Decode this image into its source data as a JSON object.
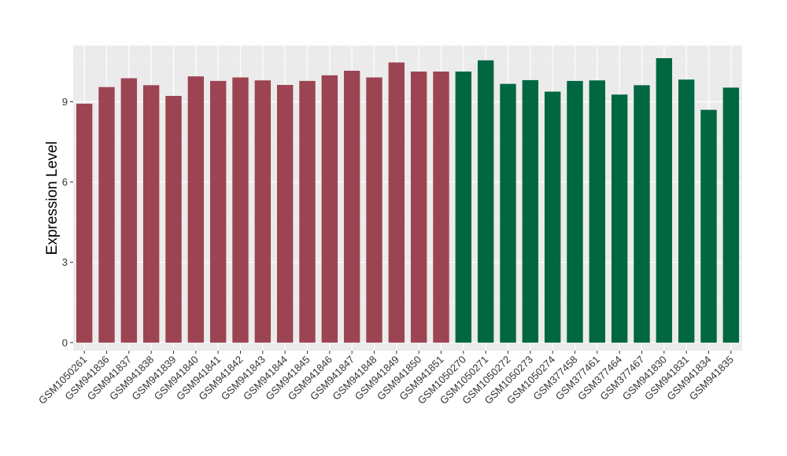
{
  "chart_data": {
    "type": "bar",
    "title": "",
    "xlabel": "",
    "ylabel": "Expression Level",
    "ylim": [
      -0.3,
      11.1
    ],
    "yticks": [
      0,
      3,
      6,
      9
    ],
    "grid": true,
    "legend": "none",
    "background": "#EBEBEB",
    "colors": {
      "group1": "#9C4452",
      "group2": "#006741"
    },
    "categories": [
      "GSM1050261",
      "GSM941836",
      "GSM941837",
      "GSM941838",
      "GSM941839",
      "GSM941840",
      "GSM941841",
      "GSM941842",
      "GSM941843",
      "GSM941844",
      "GSM941845",
      "GSM941846",
      "GSM941847",
      "GSM941848",
      "GSM941849",
      "GSM941850",
      "GSM941851",
      "GSM1050270",
      "GSM1050271",
      "GSM1050272",
      "GSM1050273",
      "GSM1050274",
      "GSM377458",
      "GSM377461",
      "GSM377464",
      "GSM377467",
      "GSM941830",
      "GSM941831",
      "GSM941834",
      "GSM941835"
    ],
    "values": [
      8.93,
      9.55,
      9.88,
      9.62,
      9.22,
      9.95,
      9.78,
      9.91,
      9.8,
      9.63,
      9.78,
      9.99,
      10.16,
      9.91,
      10.47,
      10.13,
      10.13,
      10.13,
      10.55,
      9.67,
      9.81,
      9.38,
      9.78,
      9.8,
      9.27,
      9.62,
      10.63,
      9.83,
      8.7,
      9.53
    ],
    "group": [
      1,
      1,
      1,
      1,
      1,
      1,
      1,
      1,
      1,
      1,
      1,
      1,
      1,
      1,
      1,
      1,
      1,
      2,
      2,
      2,
      2,
      2,
      2,
      2,
      2,
      2,
      2,
      2,
      2,
      2
    ]
  }
}
